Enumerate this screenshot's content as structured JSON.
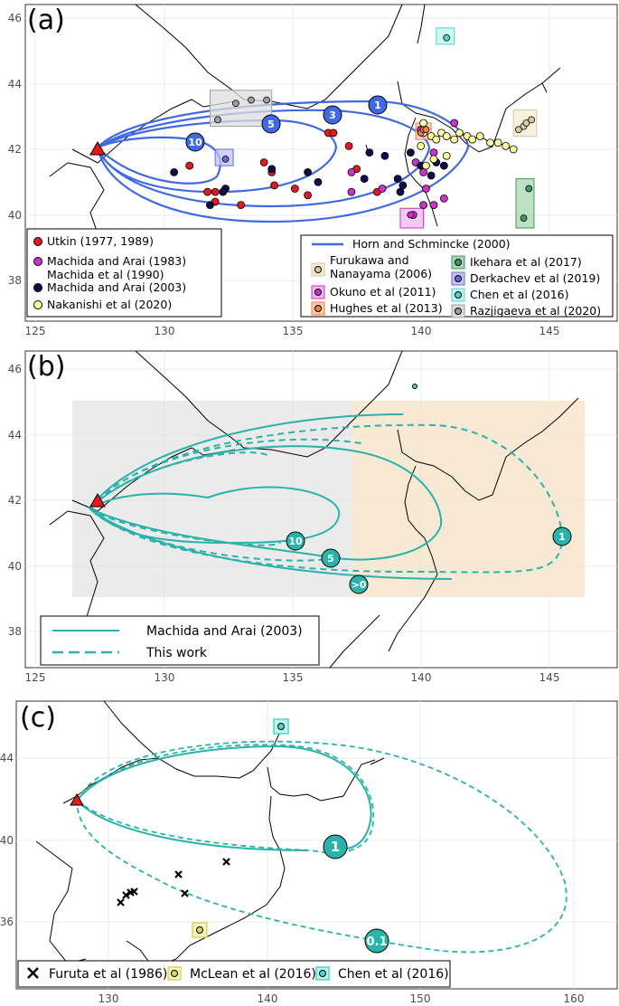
{
  "chart_data": [
    {
      "type": "scatter",
      "panel_label": "(a)",
      "xlim": [
        125,
        148
      ],
      "ylim": [
        36.5,
        46.5
      ],
      "x_ticks": [
        "125",
        "130",
        "135",
        "140",
        "145"
      ],
      "y_ticks": [
        "38",
        "40",
        "42",
        "44",
        "46"
      ],
      "grid": true,
      "source_vent": {
        "lon": 128.05,
        "lat": 41.99
      },
      "isopachs": {
        "name": "Horn and Schmincke (2000)",
        "color": "#4169e1",
        "labels": [
          {
            "text": "1",
            "lon": 139.5,
            "lat": 43.4
          },
          {
            "text": "3",
            "lon": 136.4,
            "lat": 43.1
          },
          {
            "text": "5",
            "lon": 134.4,
            "lat": 42.8
          },
          {
            "text": "10",
            "lon": 132.0,
            "lat": 42.2
          }
        ]
      },
      "series": [
        {
          "name": "Utkin (1977, 1989)",
          "color": "#e41a1c",
          "points": [
            [
              131.0,
              41.5
            ],
            [
              132.0,
              40.7
            ],
            [
              132.0,
              40.4
            ],
            [
              133.9,
              41.6
            ],
            [
              134.2,
              41.3
            ],
            [
              134.3,
              40.9
            ],
            [
              135.1,
              40.8
            ],
            [
              135.6,
              40.6
            ],
            [
              136.4,
              42.5
            ],
            [
              136.6,
              42.5
            ],
            [
              137.2,
              42.1
            ],
            [
              137.5,
              41.4
            ],
            [
              138.3,
              40.7
            ],
            [
              131.7,
              40.7
            ],
            [
              133.0,
              40.3
            ]
          ]
        },
        {
          "name": "Machida and Arai (1983)\nMachida et al (1990)",
          "color": "#cc33cc",
          "points": [
            [
              137.3,
              41.3
            ],
            [
              137.3,
              40.7
            ],
            [
              138.5,
              40.8
            ],
            [
              139.7,
              40.0
            ],
            [
              140.1,
              41.3
            ],
            [
              140.2,
              40.8
            ],
            [
              140.1,
              40.3
            ],
            [
              140.5,
              40.3
            ],
            [
              140.9,
              40.5
            ],
            [
              141.3,
              42.8
            ],
            [
              139.8,
              41.6
            ],
            [
              140.5,
              41.9
            ],
            [
              140.0,
              42.6
            ]
          ]
        },
        {
          "name": "Machida and Arai (2003)",
          "color": "#0d0d4d",
          "points": [
            [
              130.4,
              41.3
            ],
            [
              131.8,
              40.3
            ],
            [
              132.4,
              40.8
            ],
            [
              132.3,
              40.7
            ],
            [
              134.2,
              41.4
            ],
            [
              135.6,
              41.3
            ],
            [
              136.0,
              41.0
            ],
            [
              137.8,
              41.1
            ],
            [
              138.0,
              41.9
            ],
            [
              138.6,
              41.8
            ],
            [
              139.2,
              40.7
            ],
            [
              139.3,
              40.9
            ],
            [
              139.1,
              41.1
            ],
            [
              139.6,
              41.9
            ],
            [
              140.0,
              41.5
            ],
            [
              140.6,
              41.6
            ],
            [
              140.9,
              41.5
            ],
            [
              140.4,
              41.2
            ]
          ]
        },
        {
          "name": "Nakanishi et al (2020)",
          "color": "#ffffa0",
          "points": [
            [
              140.1,
              42.5
            ],
            [
              140.4,
              42.4
            ],
            [
              140.6,
              42.3
            ],
            [
              140.8,
              42.5
            ],
            [
              141.0,
              42.4
            ],
            [
              141.3,
              42.3
            ],
            [
              141.5,
              42.5
            ],
            [
              141.8,
              42.4
            ],
            [
              142.0,
              42.3
            ],
            [
              142.3,
              42.4
            ],
            [
              142.7,
              42.2
            ],
            [
              143.0,
              42.2
            ],
            [
              143.3,
              42.1
            ],
            [
              143.6,
              42.0
            ],
            [
              141.0,
              41.8
            ],
            [
              140.5,
              41.7
            ],
            [
              140.2,
              41.5
            ],
            [
              140.0,
              42.1
            ],
            [
              140.1,
              42.8
            ]
          ]
        },
        {
          "name": "Furukawa and\nNanayama (2006)",
          "color": "#d9c8a0",
          "box": [
            143.6,
            42.4,
            144.5,
            43.2
          ],
          "points": [
            [
              143.8,
              42.6
            ],
            [
              144.0,
              42.7
            ],
            [
              144.1,
              42.8
            ],
            [
              144.3,
              42.9
            ]
          ]
        },
        {
          "name": "Okuno et al (2011)",
          "color": "#cc33cc",
          "box": [
            139.2,
            39.6,
            140.1,
            40.2
          ],
          "points": [
            [
              139.6,
              40.0
            ]
          ]
        },
        {
          "name": "Hughes et al (2013)",
          "color": "#f08040",
          "box": [
            139.8,
            42.3,
            140.4,
            42.8
          ],
          "points": [
            [
              140.0,
              42.5
            ],
            [
              140.1,
              42.6
            ],
            [
              140.2,
              42.6
            ]
          ]
        },
        {
          "name": "Ikehara et al (2017)",
          "color": "#3c9a60",
          "box": [
            143.7,
            39.6,
            144.4,
            41.1
          ],
          "points": [
            [
              144.2,
              40.8
            ],
            [
              144.0,
              39.9
            ]
          ]
        },
        {
          "name": "Derkachev et al (2019)",
          "color": "#6a6ad8",
          "box": [
            132.0,
            41.5,
            132.7,
            42.0
          ],
          "points": [
            [
              132.4,
              41.7
            ]
          ]
        },
        {
          "name": "Chen et al (2016)",
          "color": "#4dd8c8",
          "box": [
            140.6,
            45.2,
            141.3,
            45.7
          ],
          "points": [
            [
              141.0,
              45.4
            ]
          ]
        },
        {
          "name": "Razjigaeva et al (2020)",
          "color": "#9e9e9e",
          "box": [
            131.8,
            42.7,
            134.2,
            43.8
          ],
          "points": [
            [
              132.1,
              42.9
            ],
            [
              132.8,
              43.4
            ],
            [
              133.4,
              43.5
            ],
            [
              134.0,
              43.5
            ]
          ]
        }
      ]
    },
    {
      "type": "line",
      "panel_label": "(b)",
      "xlim": [
        125,
        148
      ],
      "ylim": [
        36.5,
        46.5
      ],
      "x_ticks": [
        "125",
        "130",
        "135",
        "140",
        "145"
      ],
      "y_ticks": [
        "38",
        "40",
        "42",
        "44",
        "46"
      ],
      "grid": true,
      "source_vent": {
        "lon": 128.05,
        "lat": 41.99
      },
      "series": [
        {
          "name": "Machida and Arai (2003)",
          "style": "solid",
          "color": "#2ab3aa"
        },
        {
          "name": "This work",
          "style": "dashed",
          "color": "#2ab3aa"
        }
      ],
      "shaded_regions": [
        {
          "color": "#dedede",
          "lon": [
            127,
            138.5
          ],
          "lat": [
            39,
            45
          ]
        },
        {
          "color": "#f5e3c8",
          "lon": [
            138.5,
            148
          ],
          "lat": [
            39,
            45
          ]
        }
      ],
      "labels": [
        {
          "text": "10",
          "lon": 136.2,
          "lat": 40.8
        },
        {
          "text": "5",
          "lon": 137.5,
          "lat": 40.2
        },
        {
          "text": ">0",
          "lon": 138.8,
          "lat": 39.5
        },
        {
          "text": "1",
          "lon": 147.0,
          "lat": 40.9
        }
      ]
    },
    {
      "type": "line",
      "panel_label": "(c)",
      "xlim": [
        125,
        161
      ],
      "ylim": [
        34.2,
        46.8
      ],
      "x_ticks": [
        "130",
        "140",
        "150",
        "160"
      ],
      "y_ticks": [
        "36",
        "40",
        "44"
      ],
      "grid": true,
      "source_vent": {
        "lon": 128.05,
        "lat": 41.99
      },
      "labels": [
        {
          "text": "1",
          "lon": 145.0,
          "lat": 39.8
        },
        {
          "text": "0.1",
          "lon": 147.3,
          "lat": 35.0
        }
      ],
      "series": [
        {
          "name": "Furuta et al (1986)",
          "marker": "cross",
          "color": "#000000",
          "points": [
            [
              130.7,
              36.8
            ],
            [
              131.0,
              37.2
            ],
            [
              131.4,
              37.5
            ],
            [
              131.7,
              37.6
            ],
            [
              133.8,
              38.4
            ],
            [
              134.2,
              37.4
            ],
            [
              137.6,
              38.9
            ]
          ]
        },
        {
          "name": "McLean et al (2016)",
          "marker": "circle",
          "color": "#d8d860",
          "box": [
            135.6,
            35.3,
            136.5,
            36.1
          ],
          "points": [
            [
              136.0,
              35.7
            ]
          ]
        },
        {
          "name": "Chen et al (2016)",
          "marker": "circle",
          "color": "#4dd8c8",
          "box": [
            140.5,
            45.2,
            141.4,
            46.1
          ],
          "points": [
            [
              141.0,
              45.5
            ]
          ]
        }
      ]
    }
  ]
}
